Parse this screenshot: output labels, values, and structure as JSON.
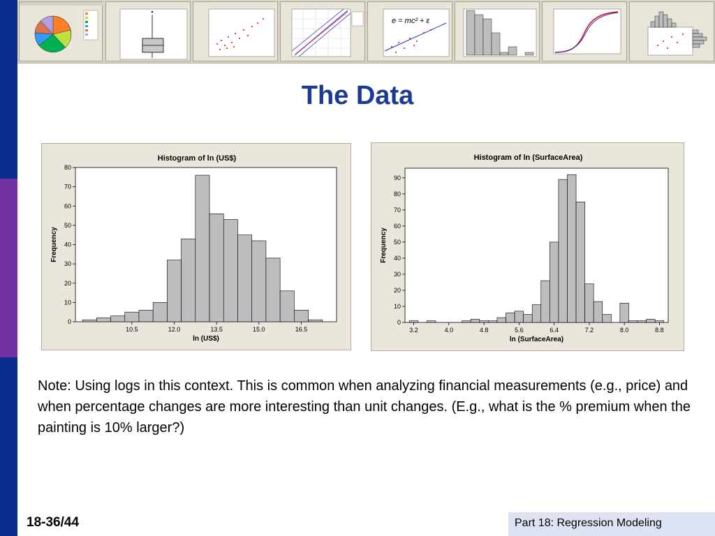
{
  "slide": {
    "title": "The Data",
    "note": "Note: Using logs in this context.  This is common when analyzing financial measurements (e.g., price) and when percentage changes are more interesting than unit changes. (E.g., what is the % premium when the painting is 10% larger?)",
    "slide_number": "18-36/44",
    "footer": "Part 18: Regression Modeling"
  },
  "thumbnails": [
    {
      "name": "pie-chart-thumbnail"
    },
    {
      "name": "boxplot-thumbnail"
    },
    {
      "name": "scatterplot-thumbnail"
    },
    {
      "name": "probability-plot-thumbnail"
    },
    {
      "name": "scatterplot-with-line-thumbnail",
      "formula": "e = mc² + ε"
    },
    {
      "name": "histogram-thumbnail"
    },
    {
      "name": "empirical-cdf-thumbnail"
    },
    {
      "name": "marginal-plot-thumbnail"
    }
  ],
  "chart_data": [
    {
      "type": "bar",
      "title": "Histogram of ln (US$)",
      "xlabel": "ln (US$)",
      "ylabel": "Frequency",
      "bin_start": 8.75,
      "bin_width": 0.5,
      "values": [
        1,
        2,
        3,
        5,
        6,
        10,
        32,
        43,
        76,
        56,
        53,
        45,
        42,
        33,
        16,
        6,
        1
      ],
      "x_ticks": [
        10.5,
        12.0,
        13.5,
        15.0,
        16.5
      ],
      "x_tick_labels": [
        "10.5",
        "12.0",
        "13.5",
        "15.0",
        "16.5"
      ],
      "xlim": [
        8.5,
        17.75
      ],
      "y_ticks": [
        0,
        10,
        20,
        30,
        40,
        50,
        60,
        70,
        80
      ],
      "ylim": [
        0,
        80
      ],
      "grid": false,
      "colors": {
        "bar": "#bdbdbd",
        "bar_edge": "#000000",
        "frame": "#eae6dc",
        "plot_bg": "#ffffff"
      }
    },
    {
      "type": "bar",
      "title": "Histogram of ln (SurfaceArea)",
      "xlabel": "ln (SurfaceArea)",
      "ylabel": "Frequency",
      "bin_start": 3.1,
      "bin_width": 0.2,
      "values": [
        1,
        0,
        1,
        0,
        0,
        0,
        1,
        2,
        1,
        1,
        3,
        6,
        7,
        5,
        11,
        26,
        50,
        89,
        92,
        75,
        24,
        13,
        5,
        0,
        12,
        1,
        1,
        2,
        1
      ],
      "x_ticks": [
        3.2,
        4.0,
        4.8,
        5.6,
        6.4,
        7.2,
        8.0,
        8.8
      ],
      "x_tick_labels": [
        "3.2",
        "4.0",
        "4.8",
        "5.6",
        "6.4",
        "7.2",
        "8.0",
        "8.8"
      ],
      "xlim": [
        3.0,
        9.0
      ],
      "y_ticks": [
        0,
        10,
        20,
        30,
        40,
        50,
        60,
        70,
        80,
        90
      ],
      "ylim": [
        0,
        96
      ],
      "grid": false,
      "colors": {
        "bar": "#bdbdbd",
        "bar_edge": "#000000",
        "frame": "#eae6dc",
        "plot_bg": "#ffffff"
      }
    }
  ]
}
